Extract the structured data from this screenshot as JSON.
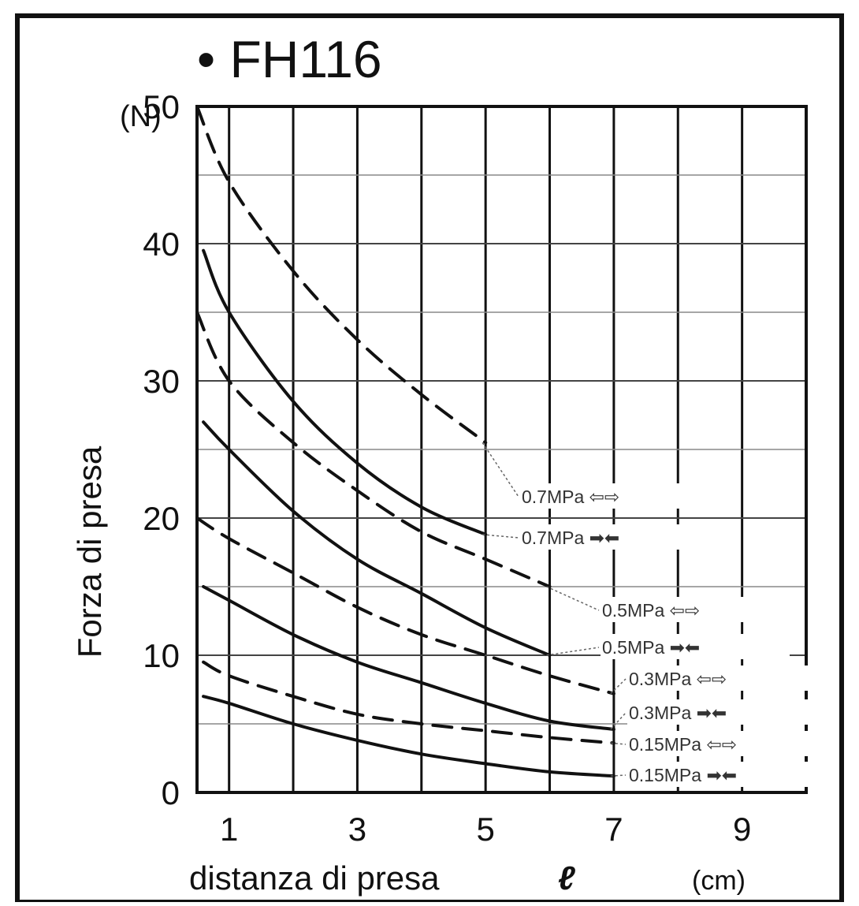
{
  "chart_data": {
    "type": "line",
    "title": "• FH116",
    "y_unit": "(N)",
    "x_unit": "(cm)",
    "xlabel": "distanza di presa",
    "xlabel_symbol": "ℓ",
    "ylabel": "Forza di presa",
    "xlim": [
      0.5,
      10
    ],
    "ylim": [
      0,
      50
    ],
    "x_ticks": [
      "1",
      "3",
      "5",
      "7",
      "9"
    ],
    "y_ticks": [
      "0",
      "10",
      "20",
      "30",
      "40",
      "50"
    ],
    "grid": true,
    "legend": "right",
    "series": [
      {
        "name": "0.7MPa",
        "symbol": "⇦⇨",
        "style": "dashed",
        "points": [
          [
            0.5,
            50
          ],
          [
            1,
            44.5
          ],
          [
            2,
            38
          ],
          [
            3,
            33
          ],
          [
            4,
            29
          ],
          [
            5,
            25.5
          ]
        ]
      },
      {
        "name": "0.7MPa",
        "symbol": "➡⬅",
        "style": "solid",
        "points": [
          [
            0.6,
            39.5
          ],
          [
            1,
            35
          ],
          [
            2,
            28.5
          ],
          [
            3,
            24
          ],
          [
            4,
            20.8
          ],
          [
            5,
            18.8
          ]
        ]
      },
      {
        "name": "0.5MPa",
        "symbol": "⇦⇨",
        "style": "dashed",
        "points": [
          [
            0.5,
            35
          ],
          [
            1,
            30
          ],
          [
            2,
            25.5
          ],
          [
            3,
            22
          ],
          [
            4,
            19
          ],
          [
            5,
            17
          ],
          [
            6,
            15
          ]
        ]
      },
      {
        "name": "0.5MPa",
        "symbol": "➡⬅",
        "style": "solid",
        "points": [
          [
            0.6,
            27
          ],
          [
            1,
            25
          ],
          [
            2,
            20.5
          ],
          [
            3,
            17
          ],
          [
            4,
            14.5
          ],
          [
            5,
            12
          ],
          [
            6,
            10
          ]
        ]
      },
      {
        "name": "0.3MPa",
        "symbol": "⇦⇨",
        "style": "dashed",
        "points": [
          [
            0.5,
            20
          ],
          [
            1,
            18.5
          ],
          [
            2,
            16
          ],
          [
            3,
            13.5
          ],
          [
            4,
            11.5
          ],
          [
            5,
            10
          ],
          [
            6,
            8.5
          ],
          [
            7,
            7.2
          ]
        ]
      },
      {
        "name": "0.3MPa",
        "symbol": "➡⬅",
        "style": "solid",
        "points": [
          [
            0.6,
            15
          ],
          [
            1,
            14
          ],
          [
            2,
            11.5
          ],
          [
            3,
            9.5
          ],
          [
            4,
            8
          ],
          [
            5,
            6.5
          ],
          [
            6,
            5.2
          ],
          [
            7,
            4.6
          ]
        ]
      },
      {
        "name": "0.15MPa",
        "symbol": "⇦⇨",
        "style": "dashed",
        "points": [
          [
            0.6,
            9.5
          ],
          [
            1,
            8.5
          ],
          [
            2,
            7
          ],
          [
            3,
            5.7
          ],
          [
            4,
            5
          ],
          [
            5,
            4.5
          ],
          [
            6,
            4
          ],
          [
            7,
            3.6
          ]
        ]
      },
      {
        "name": "0.15MPa",
        "symbol": "➡⬅",
        "style": "solid",
        "points": [
          [
            0.6,
            7
          ],
          [
            1,
            6.5
          ],
          [
            2,
            5
          ],
          [
            3,
            3.8
          ],
          [
            4,
            2.8
          ],
          [
            5,
            2.1
          ],
          [
            6,
            1.5
          ],
          [
            7,
            1.2
          ]
        ]
      }
    ]
  }
}
